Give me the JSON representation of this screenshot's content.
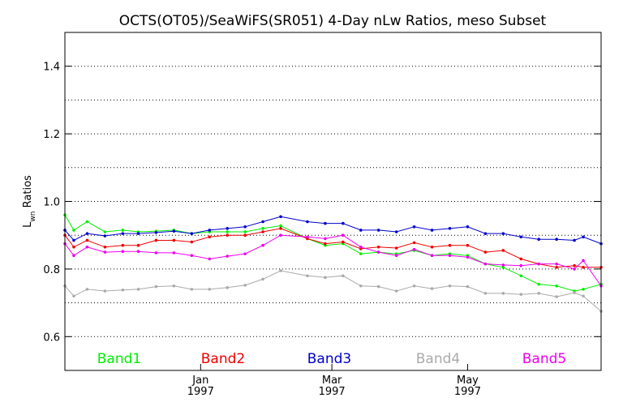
{
  "chart_data": {
    "type": "line",
    "title": "OCTS(OT05)/SeaWiFS(SR051) 4-Day nLw Ratios, meso Subset",
    "ylabel": {
      "main": "L",
      "sub": "wn",
      "rest": " Ratios"
    },
    "ylim": [
      0.5,
      1.5
    ],
    "yticks": [
      0.6,
      0.8,
      1.0,
      1.2,
      1.4
    ],
    "ytick_labels": [
      "0.6",
      "0.8",
      "1.0",
      "1.2",
      "1.4"
    ],
    "gridlines_y": [
      0.6,
      0.7,
      0.8,
      0.9,
      1.0,
      1.1,
      1.2,
      1.3,
      1.4
    ],
    "grid": "dotted horizontal",
    "xlim": [
      "1996-11-01",
      "1997-06-30"
    ],
    "xticks": [
      {
        "date": "1997-01-01",
        "line1": "Jan",
        "line2": "1997"
      },
      {
        "date": "1997-03-01",
        "line1": "Mar",
        "line2": "1997"
      },
      {
        "date": "1997-05-01",
        "line1": "May",
        "line2": "1997"
      }
    ],
    "x": [
      "1996-11-01",
      "1996-11-05",
      "1996-11-11",
      "1996-11-19",
      "1996-11-27",
      "1996-12-04",
      "1996-12-12",
      "1996-12-20",
      "1996-12-28",
      "1997-01-05",
      "1997-01-13",
      "1997-01-21",
      "1997-01-29",
      "1997-02-06",
      "1997-02-18",
      "1997-02-26",
      "1997-03-06",
      "1997-03-14",
      "1997-03-22",
      "1997-03-30",
      "1997-04-07",
      "1997-04-15",
      "1997-04-23",
      "1997-05-01",
      "1997-05-09",
      "1997-05-17",
      "1997-05-25",
      "1997-06-02",
      "1997-06-10",
      "1997-06-18",
      "1997-06-22",
      "1997-06-30"
    ],
    "legend_position": "bottom inside",
    "series": [
      {
        "name": "Band1",
        "color": "#00ee00",
        "values": [
          0.96,
          0.915,
          0.94,
          0.91,
          0.915,
          0.91,
          0.912,
          0.915,
          0.905,
          0.91,
          0.91,
          0.91,
          0.92,
          0.928,
          0.89,
          0.87,
          0.875,
          0.845,
          0.85,
          0.845,
          0.855,
          0.84,
          0.845,
          0.84,
          0.815,
          0.805,
          0.78,
          0.755,
          0.75,
          0.735,
          0.74,
          0.755
        ]
      },
      {
        "name": "Band2",
        "color": "#ee0000",
        "values": [
          0.9,
          0.865,
          0.885,
          0.865,
          0.87,
          0.87,
          0.885,
          0.885,
          0.88,
          0.895,
          0.9,
          0.9,
          0.91,
          0.92,
          0.89,
          0.875,
          0.88,
          0.86,
          0.865,
          0.862,
          0.878,
          0.865,
          0.87,
          0.87,
          0.85,
          0.855,
          0.83,
          0.815,
          0.805,
          0.81,
          0.805,
          0.805
        ]
      },
      {
        "name": "Band3",
        "color": "#0000cc",
        "values": [
          0.915,
          0.885,
          0.905,
          0.898,
          0.905,
          0.905,
          0.908,
          0.912,
          0.905,
          0.915,
          0.92,
          0.925,
          0.94,
          0.955,
          0.94,
          0.935,
          0.935,
          0.915,
          0.915,
          0.91,
          0.925,
          0.915,
          0.92,
          0.925,
          0.905,
          0.905,
          0.895,
          0.888,
          0.888,
          0.885,
          0.895,
          0.875
        ]
      },
      {
        "name": "Band4",
        "color": "#aaaaaa",
        "values": [
          0.75,
          0.72,
          0.74,
          0.735,
          0.738,
          0.74,
          0.748,
          0.75,
          0.74,
          0.74,
          0.745,
          0.752,
          0.77,
          0.795,
          0.78,
          0.775,
          0.78,
          0.75,
          0.748,
          0.735,
          0.75,
          0.742,
          0.75,
          0.748,
          0.728,
          0.728,
          0.725,
          0.728,
          0.718,
          0.73,
          0.72,
          0.675
        ]
      },
      {
        "name": "Band5",
        "color": "#ee00ee",
        "values": [
          0.875,
          0.84,
          0.865,
          0.85,
          0.852,
          0.852,
          0.848,
          0.848,
          0.84,
          0.83,
          0.838,
          0.845,
          0.87,
          0.9,
          0.895,
          0.89,
          0.9,
          0.865,
          0.85,
          0.84,
          0.858,
          0.84,
          0.84,
          0.835,
          0.815,
          0.812,
          0.81,
          0.815,
          0.815,
          0.8,
          0.825,
          0.75
        ]
      }
    ]
  }
}
